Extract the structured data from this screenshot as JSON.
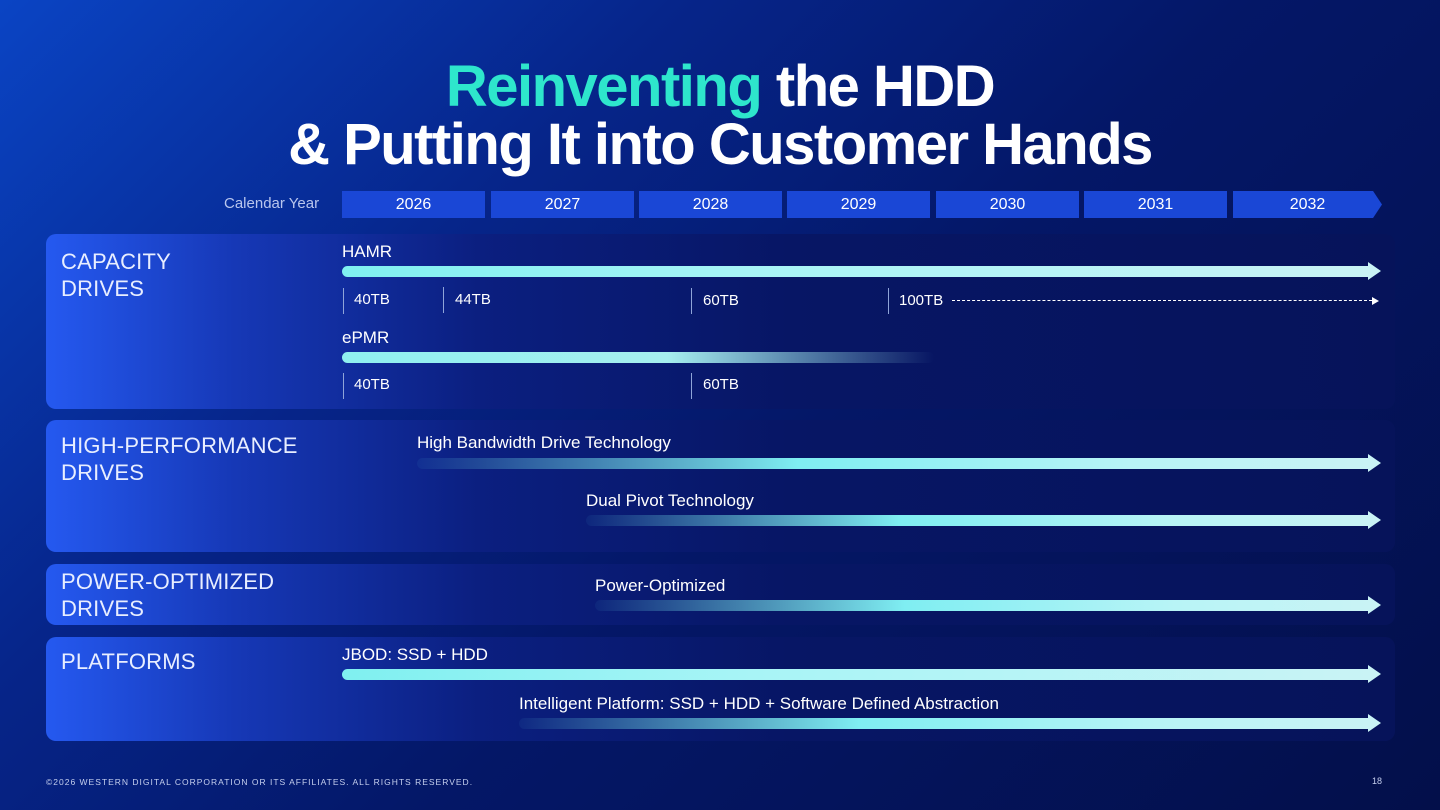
{
  "title": {
    "line1_accent": "Reinventing",
    "line1_rest": " the HDD",
    "line2": "& Putting It into Customer Hands"
  },
  "timeline": {
    "label": "Calendar Year",
    "years": [
      "2026",
      "2027",
      "2028",
      "2029",
      "2030",
      "2031",
      "2032"
    ]
  },
  "capacity": {
    "label_line1": "CAPACITY",
    "label_line2": "DRIVES",
    "hamr_label": "HAMR",
    "hamr_milestones": [
      "40TB",
      "44TB",
      "60TB",
      "100TB"
    ],
    "epmr_label": "ePMR",
    "epmr_milestones": [
      "40TB",
      "60TB"
    ]
  },
  "high_performance": {
    "label_line1": "HIGH-PERFORMANCE",
    "label_line2": "DRIVES",
    "tech1": "High Bandwidth Drive Technology",
    "tech2": "Dual Pivot Technology"
  },
  "power_optimized": {
    "label_line1": "POWER-OPTIMIZED",
    "label_line2": "DRIVES",
    "tech1": "Power-Optimized"
  },
  "platforms": {
    "label": "PLATFORMS",
    "tech1": "JBOD: SSD + HDD",
    "tech2": "Intelligent Platform: SSD + HDD + Software Defined Abstraction"
  },
  "footer": {
    "copyright": "©2026 WESTERN DIGITAL CORPORATION OR ITS AFFILIATES. ALL RIGHTS RESERVED.",
    "page_number": "18"
  },
  "colors": {
    "accent": "#2ee6cc",
    "year_box": "#1a47d6",
    "bar": "#c9f3f5"
  }
}
